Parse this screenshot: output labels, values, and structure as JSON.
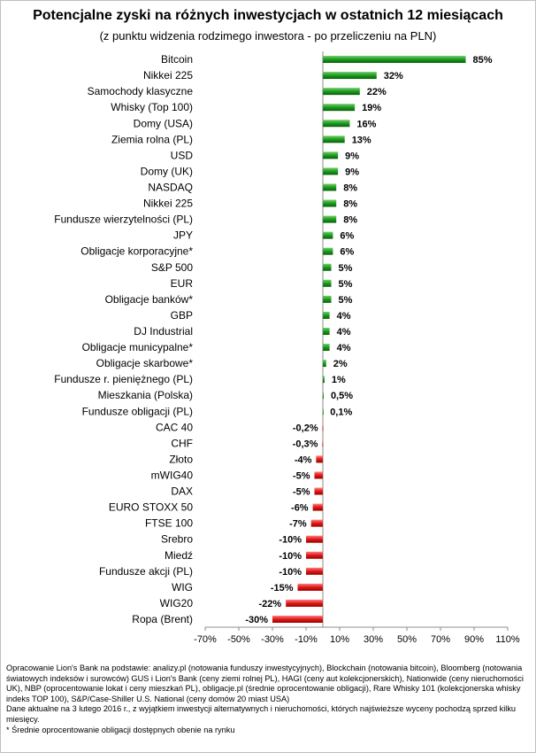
{
  "chart_data": {
    "type": "bar",
    "orientation": "horizontal",
    "title": "Potencjalne zyski na różnych inwestycjach w ostatnich 12 miesiącach",
    "subtitle": "(z punktu  widzenia rodzimego  inwestora - po przeliczeniu na PLN)",
    "xlabel": "",
    "ylabel": "",
    "xlim": [
      -70,
      110
    ],
    "grid": false,
    "colors": {
      "positive": "#1f9a1f",
      "negative": "#e01818"
    },
    "x_ticks": [
      "-70%",
      "-50%",
      "-30%",
      "-10%",
      "10%",
      "30%",
      "50%",
      "70%",
      "90%",
      "110%"
    ],
    "categories": [
      "Bitcoin",
      "Nikkei 225",
      "Samochody klasyczne",
      "Whisky (Top 100)",
      "Domy (USA)",
      "Ziemia rolna (PL)",
      "USD",
      "Domy (UK)",
      "NASDAQ",
      "Nikkei 225",
      "Fundusze wierzytelności (PL)",
      "JPY",
      "Obligacje korporacyjne*",
      "S&P 500",
      "EUR",
      "Obligacje banków*",
      "GBP",
      "DJ Industrial",
      "Obligacje municypalne*",
      "Obligacje skarbowe*",
      "Fundusze r. pieniężnego (PL)",
      "Mieszkania (Polska)",
      "Fundusze obligacji (PL)",
      "CAC 40",
      "CHF",
      "Złoto",
      "mWIG40",
      "DAX",
      "EURO STOXX 50",
      "FTSE 100",
      "Srebro",
      "Miedź",
      "Fundusze akcji (PL)",
      "WIG",
      "WIG20",
      "Ropa (Brent)"
    ],
    "values": [
      85,
      32,
      22,
      19,
      16,
      13,
      9,
      9,
      8,
      8,
      8,
      6,
      6,
      5,
      5,
      5,
      4,
      4,
      4,
      2,
      1,
      0.5,
      0.1,
      -0.2,
      -0.3,
      -4,
      -5,
      -5,
      -6,
      -7,
      -10,
      -10,
      -10,
      -15,
      -22,
      -30
    ],
    "value_labels": [
      "85%",
      "32%",
      "22%",
      "19%",
      "16%",
      "13%",
      "9%",
      "9%",
      "8%",
      "8%",
      "8%",
      "6%",
      "6%",
      "5%",
      "5%",
      "5%",
      "4%",
      "4%",
      "4%",
      "2%",
      "1%",
      "0,5%",
      "0,1%",
      "-0,2%",
      "-0,3%",
      "-4%",
      "-5%",
      "-5%",
      "-6%",
      "-7%",
      "-10%",
      "-10%",
      "-10%",
      "-15%",
      "-22%",
      "-30%"
    ]
  },
  "footer": {
    "source": "Opracowanie Lion's Bank na podstawie: analizy.pl (notowania funduszy inwestycyjnych), Blockchain (notowania bitcoin), Bloomberg (notowania światowych indeksów i surowców) GUS i Lion's Bank (ceny ziemi rolnej PL), HAGI (ceny aut kolekcjonerskich), Nationwide (ceny nieruchomości UK), NBP (oprocentowanie lokat i ceny mieszkań PL), obligacje.pl (średnie oprocentowanie obligacji), Rare Whisky 101 (kolekcjonerska whisky indeks TOP 100), S&P/Case-Shiller U.S. National (ceny domów 20 miast USA)",
    "date_note": "Dane aktualne na 3 lutego 2016 r., z wyjątkiem inwestycji alternatywnych i nieruchomości, których najświeższe wyceny pochodzą sprzed kilku miesięcy.",
    "footnote": "* Średnie oprocentowanie obligacji dostępnych obenie na rynku"
  }
}
